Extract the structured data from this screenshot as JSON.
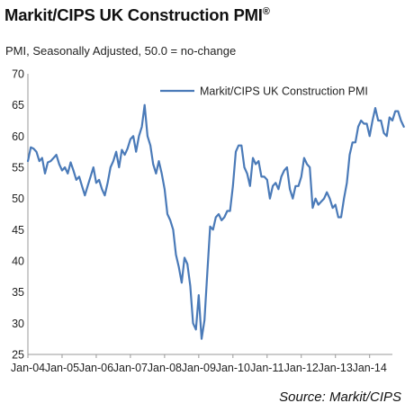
{
  "chart_data": {
    "type": "line",
    "title": "Markit/CIPS UK Construction PMI",
    "title_mark": "®",
    "subtitle": "PMI, Seasonally Adjusted, 50.0 = no-change",
    "source": "Source: Markit/CIPS",
    "ylim": [
      25,
      70
    ],
    "yticks": [
      25,
      30,
      35,
      40,
      45,
      50,
      55,
      60,
      65,
      70
    ],
    "xlim": [
      "2004-01",
      "2014-09"
    ],
    "xticks": [
      "Jan-04",
      "Jan-05",
      "Jan-06",
      "Jan-07",
      "Jan-08",
      "Jan-09",
      "Jan-10",
      "Jan-11",
      "Jan-12",
      "Jan-13",
      "Jan-14"
    ],
    "legend_position": "top-right",
    "grid": false,
    "series": [
      {
        "name": "Markit/CIPS UK Construction PMI",
        "color": "#4a7ab8",
        "start": "2004-01",
        "frequency": "monthly",
        "values": [
          56.0,
          58.2,
          58.0,
          57.5,
          56.0,
          56.5,
          54.0,
          55.8,
          56.0,
          56.5,
          57.0,
          55.5,
          54.5,
          55.0,
          54.0,
          55.8,
          54.5,
          53.0,
          53.5,
          52.0,
          50.5,
          52.0,
          53.5,
          55.0,
          52.5,
          53.0,
          51.5,
          50.5,
          52.5,
          55.0,
          56.0,
          57.5,
          55.0,
          57.8,
          57.0,
          58.0,
          59.5,
          60.0,
          57.5,
          60.0,
          61.5,
          65.0,
          60.0,
          58.5,
          55.5,
          54.0,
          56.0,
          54.0,
          51.5,
          47.5,
          46.5,
          45.0,
          41.0,
          39.0,
          36.5,
          40.5,
          39.5,
          36.0,
          30.0,
          29.0,
          34.5,
          27.5,
          30.5,
          38.0,
          45.5,
          45.0,
          47.0,
          47.5,
          46.5,
          47.0,
          48.0,
          48.0,
          52.0,
          57.5,
          58.5,
          58.5,
          55.0,
          54.0,
          52.0,
          56.5,
          55.5,
          56.0,
          53.5,
          53.5,
          53.0,
          50.0,
          52.0,
          52.5,
          51.5,
          53.5,
          54.5,
          55.0,
          51.5,
          50.0,
          52.0,
          52.0,
          53.5,
          56.5,
          55.5,
          55.0,
          48.5,
          50.0,
          49.0,
          49.5,
          50.0,
          51.0,
          50.0,
          48.5,
          49.0,
          47.0,
          47.0,
          50.0,
          52.5,
          57.0,
          59.0,
          59.0,
          61.5,
          62.5,
          62.0,
          62.0,
          60.0,
          62.5,
          64.5,
          62.5,
          62.5,
          60.5,
          60.0,
          63.0,
          62.5,
          64.0,
          64.0,
          62.5,
          61.5
        ]
      }
    ]
  }
}
